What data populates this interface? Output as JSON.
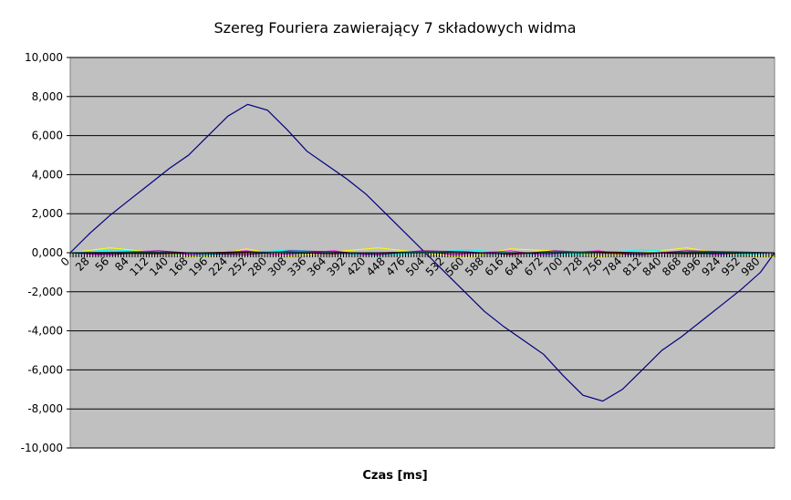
{
  "chart_data": {
    "type": "line",
    "title": "Szereg Fouriera zawierający 7 składowych widma",
    "xlabel": "Czas [ms]",
    "ylabel": "",
    "xlim": [
      0,
      1000
    ],
    "ylim": [
      -10,
      10
    ],
    "yticks": [
      10,
      8,
      6,
      4,
      2,
      0,
      -2,
      -4,
      -6,
      -8,
      -10
    ],
    "ytick_labels": [
      "10,000",
      "8,000",
      "6,000",
      "4,000",
      "2,000",
      "0,000",
      "-2,000",
      "-4,000",
      "-6,000",
      "-8,000",
      "-10,000"
    ],
    "xtick_labels": [
      "0",
      "28",
      "56",
      "84",
      "112",
      "140",
      "168",
      "196",
      "224",
      "252",
      "280",
      "308",
      "336",
      "364",
      "392",
      "420",
      "448",
      "476",
      "504",
      "532",
      "560",
      "588",
      "616",
      "644",
      "672",
      "700",
      "728",
      "756",
      "784",
      "812",
      "840",
      "868",
      "896",
      "924",
      "952",
      "980"
    ],
    "grid": true,
    "legend": "none",
    "background": "#c0c0c0",
    "series": [
      {
        "color": "#000080",
        "x": [
          0,
          28,
          56,
          84,
          112,
          140,
          168,
          196,
          224,
          252,
          280,
          308,
          336,
          364,
          392,
          420,
          448,
          476,
          504,
          532,
          560,
          588,
          616,
          644,
          672,
          700,
          728,
          756,
          784,
          812,
          840,
          868,
          896,
          924,
          952,
          980,
          1000
        ],
        "values": [
          0.0,
          1.0,
          1.9,
          2.7,
          3.5,
          4.3,
          5.0,
          6.0,
          7.0,
          7.6,
          7.3,
          6.3,
          5.2,
          4.5,
          3.8,
          3.0,
          2.0,
          1.0,
          0.0,
          -1.0,
          -2.0,
          -3.0,
          -3.8,
          -4.5,
          -5.2,
          -6.3,
          -7.3,
          -7.6,
          -7.0,
          -6.0,
          -5.0,
          -4.3,
          -3.5,
          -2.7,
          -1.9,
          -1.0,
          0.0
        ]
      },
      {
        "color": "#ffff00",
        "x": [
          0,
          56,
          125,
          187,
          250,
          312,
          375,
          437,
          500,
          562,
          625,
          687,
          750,
          812,
          875,
          937,
          1000
        ],
        "values": [
          0.0,
          0.25,
          0.0,
          -0.25,
          0.2,
          -0.2,
          0.05,
          0.25,
          0.0,
          -0.25,
          0.2,
          0.1,
          -0.2,
          0.0,
          0.25,
          -0.1,
          -0.2
        ]
      },
      {
        "color": "#00ffff",
        "x": [
          0,
          63,
          125,
          188,
          250,
          313,
          375,
          438,
          500,
          563,
          625,
          688,
          750,
          813,
          875,
          938,
          1000
        ],
        "values": [
          0.0,
          0.15,
          0.0,
          -0.15,
          0.0,
          0.15,
          0.0,
          -0.15,
          0.0,
          0.15,
          0.0,
          -0.15,
          0.0,
          0.15,
          0.0,
          -0.15,
          0.0
        ]
      },
      {
        "color": "#ff00ff",
        "x": [
          0,
          42,
          84,
          125,
          167,
          209,
          250,
          292,
          334,
          375,
          417,
          459,
          500,
          542,
          584,
          625,
          667,
          709,
          750,
          792,
          834,
          875,
          917,
          959,
          1000
        ],
        "values": [
          0.0,
          -0.1,
          0.05,
          0.1,
          -0.1,
          0.0,
          0.1,
          -0.1,
          0.0,
          0.1,
          -0.1,
          0.0,
          0.1,
          -0.1,
          0.0,
          0.1,
          -0.1,
          0.0,
          0.1,
          -0.1,
          0.0,
          0.1,
          -0.1,
          0.0,
          0.0
        ]
      },
      {
        "color": "#800080",
        "x": [
          0,
          62,
          125,
          187,
          250,
          312,
          375,
          437,
          500,
          562,
          625,
          687,
          750,
          812,
          875,
          937,
          1000
        ],
        "values": [
          0.0,
          -0.1,
          0.1,
          -0.05,
          -0.1,
          0.1,
          0.05,
          -0.1,
          0.1,
          0.05,
          -0.1,
          0.1,
          0.0,
          -0.1,
          0.1,
          0.05,
          0.0
        ]
      },
      {
        "color": "#800000",
        "x": [
          0,
          125,
          250,
          375,
          500,
          625,
          750,
          875,
          1000
        ],
        "values": [
          0.0,
          -0.05,
          0.05,
          -0.05,
          0.05,
          -0.05,
          0.05,
          -0.05,
          0.0
        ]
      },
      {
        "color": "#008080",
        "x": [
          0,
          100,
          200,
          300,
          400,
          500,
          600,
          700,
          800,
          900,
          1000
        ],
        "values": [
          0.0,
          0.05,
          -0.05,
          0.05,
          -0.05,
          0.05,
          -0.05,
          0.05,
          -0.05,
          0.05,
          0.0
        ]
      },
      {
        "color": "#0000ff",
        "x": [
          0,
          1000
        ],
        "values": [
          0.0,
          0.0
        ]
      }
    ]
  }
}
